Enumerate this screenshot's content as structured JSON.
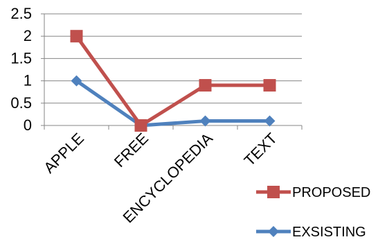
{
  "chart_data": {
    "type": "line",
    "categories": [
      "APPLE",
      "FREE",
      "ENCYCLOPEDIA",
      "TEXT"
    ],
    "series": [
      {
        "name": "PROPOSED",
        "values": [
          2,
          0,
          0.9,
          0.9
        ],
        "color": "#C0504D",
        "marker": "square"
      },
      {
        "name": "EXSISTING",
        "values": [
          1,
          0,
          0.1,
          0.1
        ],
        "color": "#4F81BD",
        "marker": "diamond"
      }
    ],
    "ylim": [
      0,
      2.5
    ],
    "yticks": [
      "0",
      "0.5",
      "1",
      "1.5",
      "2",
      "2.5"
    ],
    "grid": true,
    "legend_position": "right-bottom",
    "title": "",
    "xlabel": "",
    "ylabel": ""
  }
}
